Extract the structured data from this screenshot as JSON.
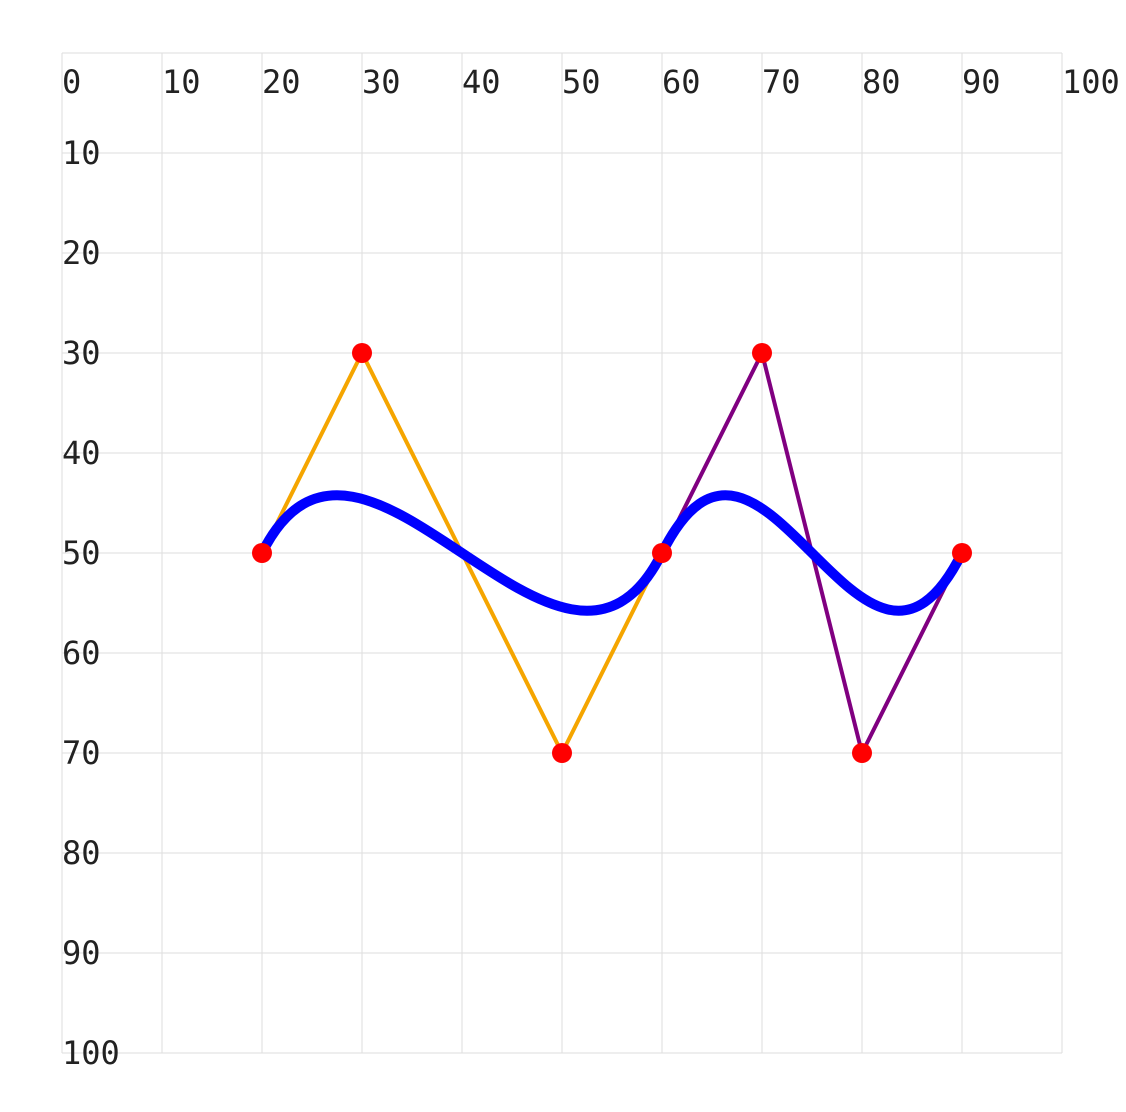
{
  "chart_data": {
    "type": "line",
    "title": "",
    "xlabel": "",
    "ylabel": "",
    "xlim": [
      0,
      100
    ],
    "ylim": [
      0,
      100
    ],
    "y_inverted": true,
    "grid": true,
    "x_ticks": [
      0,
      10,
      20,
      30,
      40,
      50,
      60,
      70,
      80,
      90,
      100
    ],
    "y_ticks": [
      10,
      20,
      30,
      40,
      50,
      60,
      70,
      80,
      90,
      100
    ],
    "grid_color": "#dddddd",
    "series": [
      {
        "style": "polyline",
        "color": "#f5a500",
        "points": [
          [
            20,
            50
          ],
          [
            30,
            30
          ],
          [
            50,
            70
          ],
          [
            60,
            50
          ]
        ]
      },
      {
        "style": "polyline",
        "color": "#800080",
        "points": [
          [
            60,
            50
          ],
          [
            70,
            30
          ],
          [
            80,
            70
          ],
          [
            90,
            50
          ]
        ]
      },
      {
        "style": "bezier",
        "color": "#0000ff",
        "segments": [
          [
            [
              20,
              50
            ],
            [
              30,
              30
            ],
            [
              50,
              70
            ],
            [
              60,
              50
            ]
          ],
          [
            [
              60,
              50
            ],
            [
              70,
              30
            ],
            [
              80,
              70
            ],
            [
              90,
              50
            ]
          ]
        ]
      },
      {
        "style": "points",
        "color": "#ff0000",
        "points": [
          [
            20,
            50
          ],
          [
            30,
            30
          ],
          [
            50,
            70
          ],
          [
            60,
            50
          ],
          [
            70,
            30
          ],
          [
            80,
            70
          ],
          [
            90,
            50
          ]
        ]
      }
    ]
  }
}
